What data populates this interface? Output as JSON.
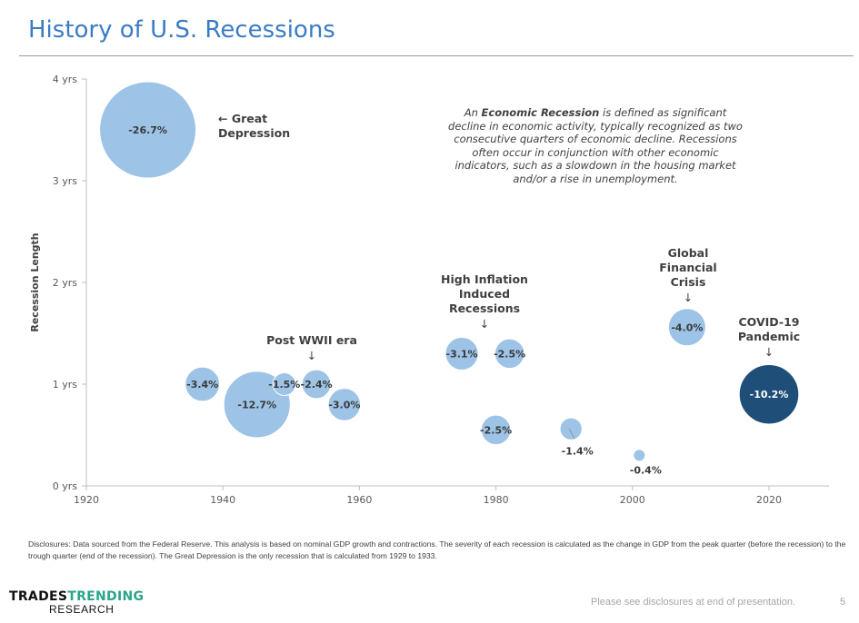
{
  "slide": {
    "title": "History of U.S. Recessions",
    "definition": {
      "prefix": "An ",
      "bold": "Economic Recession",
      "suffix": " is defined as significant decline in economic activity, typically recognized as two consecutive quarters of economic decline. Recessions often occur in conjunction with other economic indicators, such as a slowdown in the housing market and/or a rise in unemployment."
    },
    "disclosures": "Disclosures: Data sourced from the Federal Reserve. This analysis is based on nominal GDP growth and contractions. The severity of each recession is calculated as the change in GDP from the peak quarter (before the recession) to the trough quarter (end of the recession). The Great Depression is the only recession that is calculated from 1929 to 1933.",
    "footer_note": "Please see disclosures at end of presentation.",
    "page_number": "5",
    "logo": {
      "part1": "TRADES",
      "part2": "TRENDING",
      "part3": "RESEARCH"
    }
  },
  "colors": {
    "title": "#3a7cc4",
    "bubble_light": "#9dc3e6",
    "bubble_dark": "#1f4e79",
    "logo_green": "#2aa58a"
  },
  "chart_data": {
    "type": "scatter",
    "subtype": "bubble",
    "title": "History of U.S. Recessions",
    "xlabel": "",
    "ylabel": "Recession Length",
    "xlim": [
      1920,
      2029
    ],
    "ylim": [
      0,
      4
    ],
    "x_ticks": [
      1920,
      1940,
      1960,
      1980,
      2000,
      2020
    ],
    "x_tick_labels": [
      "1920",
      "1940",
      "1960",
      "1980",
      "2000",
      "2020"
    ],
    "y_ticks": [
      0,
      1,
      2,
      3,
      4
    ],
    "y_tick_labels": [
      "0 yrs",
      "1 yrs",
      "2 yrs",
      "3 yrs",
      "4 yrs"
    ],
    "grid": false,
    "size_metric": "GDP change peak-to-trough (%)",
    "points": [
      {
        "year": 1929,
        "length": 3.5,
        "gdp_change": -26.7,
        "label": "-26.7%",
        "highlight": false
      },
      {
        "year": 1937,
        "length": 1.0,
        "gdp_change": -3.4,
        "label": "-3.4%",
        "highlight": false
      },
      {
        "year": 1945,
        "length": 0.8,
        "gdp_change": -12.7,
        "label": "-12.7%",
        "highlight": false
      },
      {
        "year": 1949,
        "length": 1.0,
        "gdp_change": -1.5,
        "label": "-1.5%",
        "highlight": false
      },
      {
        "year": 1953.7,
        "length": 1.0,
        "gdp_change": -2.4,
        "label": "-2.4%",
        "highlight": false
      },
      {
        "year": 1957.8,
        "length": 0.8,
        "gdp_change": -3.0,
        "label": "-3.0%",
        "highlight": false
      },
      {
        "year": 1975,
        "length": 1.3,
        "gdp_change": -3.1,
        "label": "-3.1%",
        "highlight": false
      },
      {
        "year": 1980,
        "length": 0.55,
        "gdp_change": -2.5,
        "label": "-2.5%",
        "highlight": false
      },
      {
        "year": 1982,
        "length": 1.3,
        "gdp_change": -2.5,
        "label": "-2.5%",
        "highlight": false
      },
      {
        "year": 1991,
        "length": 0.56,
        "gdp_change": -1.4,
        "label": "-1.4%",
        "highlight": false,
        "label_outside": true
      },
      {
        "year": 2001,
        "length": 0.3,
        "gdp_change": -0.4,
        "label": "-0.4%",
        "highlight": false,
        "label_outside": true
      },
      {
        "year": 2008,
        "length": 1.56,
        "gdp_change": -4.0,
        "label": "-4.0%",
        "highlight": false
      },
      {
        "year": 2020,
        "length": 0.9,
        "gdp_change": -10.2,
        "label": "-10.2%",
        "highlight": true
      }
    ],
    "annotations": [
      {
        "text": [
          "← Great",
          "Depression"
        ],
        "near_year": 1929,
        "arrow": "left"
      },
      {
        "text": [
          "Post WWII era"
        ],
        "near_year": 1953,
        "arrow": "down"
      },
      {
        "text": [
          "High Inflation",
          "Induced",
          "Recessions"
        ],
        "near_year": 1979,
        "arrow": "down"
      },
      {
        "text": [
          "Global",
          "Financial",
          "Crisis"
        ],
        "near_year": 2008,
        "arrow": "down"
      },
      {
        "text": [
          "COVID-19",
          "Pandemic"
        ],
        "near_year": 2020,
        "arrow": "down"
      }
    ]
  }
}
